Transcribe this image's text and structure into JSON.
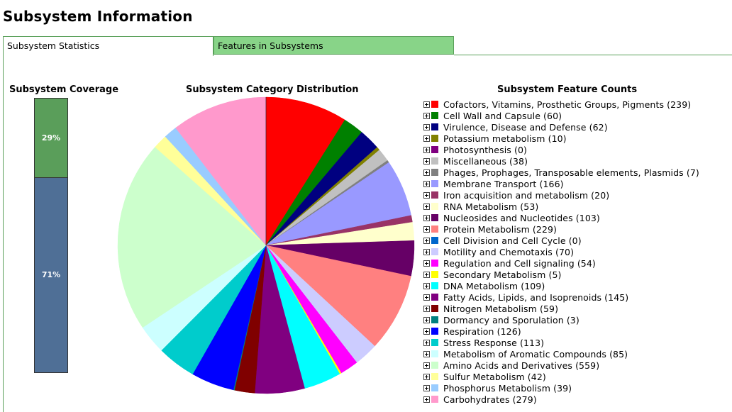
{
  "page": {
    "title": "Subsystem Information"
  },
  "tabs": [
    {
      "label": "Subsystem Statistics",
      "active": true
    },
    {
      "label": "Features in Subsystems",
      "active": false
    }
  ],
  "coverage": {
    "title": "Subsystem Coverage",
    "in_subsystem_label": "29%",
    "not_in_subsystem_label": "71%",
    "in_subsystem_fraction": 0.29,
    "colors": {
      "in": "#5a9e5a",
      "out": "#4f6f96"
    }
  },
  "distribution": {
    "title": "Subsystem Category Distribution"
  },
  "feature_counts": {
    "title": "Subsystem Feature Counts"
  },
  "chart_data": {
    "type": "pie",
    "start": "12 o'clock, clockwise",
    "slices": [
      {
        "name": "Cofactors, Vitamins, Prosthetic Groups, Pigments",
        "value": 239,
        "color": "#ff0000"
      },
      {
        "name": "Cell Wall and Capsule",
        "value": 60,
        "color": "#008000"
      },
      {
        "name": "Virulence, Disease and Defense",
        "value": 62,
        "color": "#000080"
      },
      {
        "name": "Potassium metabolism",
        "value": 10,
        "color": "#808000"
      },
      {
        "name": "Photosynthesis",
        "value": 0,
        "color": "#800080"
      },
      {
        "name": "Miscellaneous",
        "value": 38,
        "color": "#c0c0c0"
      },
      {
        "name": "Phages, Prophages, Transposable elements, Plasmids",
        "value": 7,
        "color": "#808080"
      },
      {
        "name": "Membrane Transport",
        "value": 166,
        "color": "#9999ff"
      },
      {
        "name": "Iron acquisition and metabolism",
        "value": 20,
        "color": "#993366"
      },
      {
        "name": "RNA Metabolism",
        "value": 53,
        "color": "#ffffcc"
      },
      {
        "name": "Nucleosides and Nucleotides",
        "value": 103,
        "color": "#660066"
      },
      {
        "name": "Protein Metabolism",
        "value": 229,
        "color": "#ff8080"
      },
      {
        "name": "Cell Division and Cell Cycle",
        "value": 0,
        "color": "#0066cc"
      },
      {
        "name": "Motility and Chemotaxis",
        "value": 70,
        "color": "#ccccff"
      },
      {
        "name": "Regulation and Cell signaling",
        "value": 54,
        "color": "#ff00ff"
      },
      {
        "name": "Secondary Metabolism",
        "value": 5,
        "color": "#ffff00"
      },
      {
        "name": "DNA Metabolism",
        "value": 109,
        "color": "#00ffff"
      },
      {
        "name": "Fatty Acids, Lipids, and Isoprenoids",
        "value": 145,
        "color": "#800080"
      },
      {
        "name": "Nitrogen Metabolism",
        "value": 59,
        "color": "#800000"
      },
      {
        "name": "Dormancy and Sporulation",
        "value": 3,
        "color": "#008080"
      },
      {
        "name": "Respiration",
        "value": 126,
        "color": "#0000ff"
      },
      {
        "name": "Stress Response",
        "value": 113,
        "color": "#00cccc"
      },
      {
        "name": "Metabolism of Aromatic Compounds",
        "value": 85,
        "color": "#ccffff"
      },
      {
        "name": "Amino Acids and Derivatives",
        "value": 559,
        "color": "#ccffcc"
      },
      {
        "name": "Sulfur Metabolism",
        "value": 42,
        "color": "#ffff99"
      },
      {
        "name": "Phosphorus Metabolism",
        "value": 39,
        "color": "#99ccff"
      },
      {
        "name": "Carbohydrates",
        "value": 279,
        "color": "#ff99cc"
      }
    ]
  }
}
